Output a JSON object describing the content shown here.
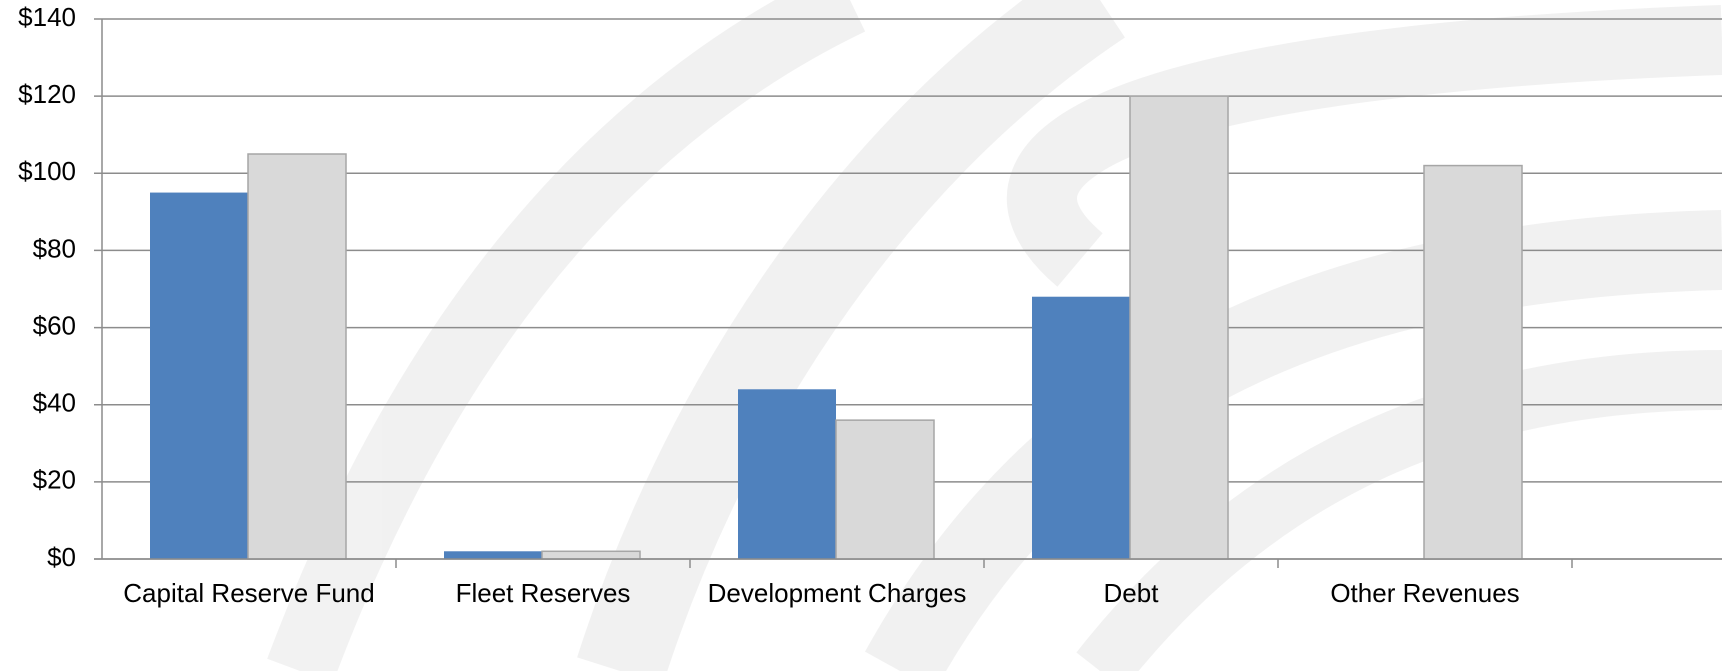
{
  "chart_data": {
    "type": "bar",
    "categories": [
      "Capital Reserve Fund",
      "Fleet Reserves",
      "Development Charges",
      "Debt",
      "Other Revenues"
    ],
    "series": [
      {
        "color": "#4f81bd",
        "values": [
          95,
          2,
          44,
          68,
          null
        ]
      },
      {
        "color": "#d9d9d9",
        "values": [
          105,
          2,
          36,
          120,
          102
        ]
      }
    ],
    "ylim": [
      0,
      140
    ],
    "yticks": [
      {
        "value": 0,
        "label": "$0"
      },
      {
        "value": 20,
        "label": "$20"
      },
      {
        "value": 40,
        "label": "$40"
      },
      {
        "value": 60,
        "label": "$60"
      },
      {
        "value": 80,
        "label": "$80"
      },
      {
        "value": 100,
        "label": "$100"
      },
      {
        "value": 120,
        "label": "$120"
      },
      {
        "value": 140,
        "label": "$140"
      }
    ],
    "grid": true
  }
}
